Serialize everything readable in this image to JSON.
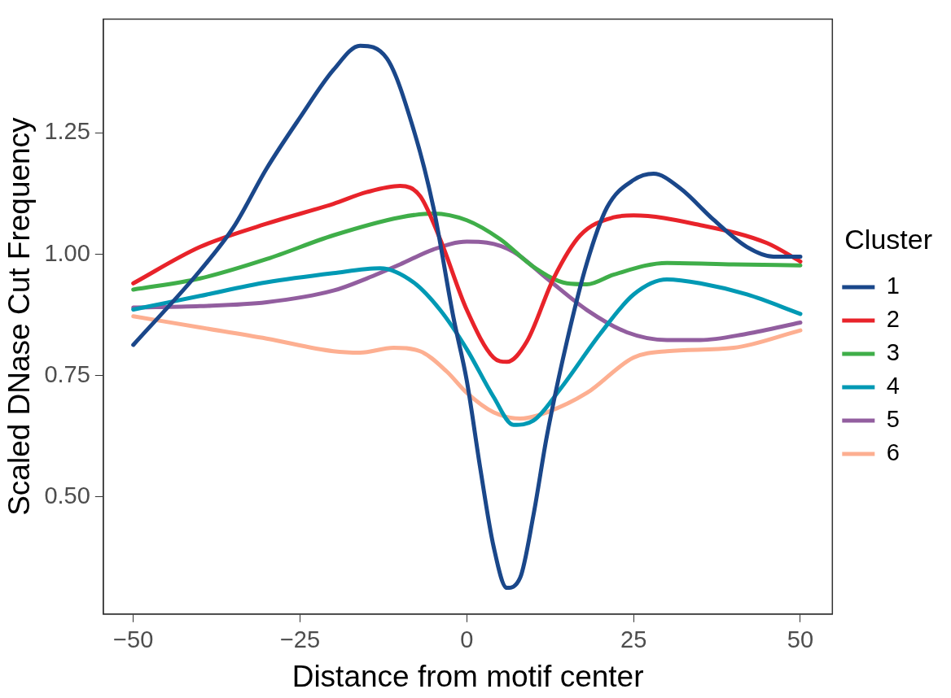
{
  "chart_data": {
    "type": "line",
    "xlabel": "Distance from motif center",
    "ylabel": "Scaled DNase Cut Frequency",
    "legend_title": "Cluster",
    "legend": "right",
    "grid": false,
    "marker": "none",
    "line_style": "solid",
    "xlim": [
      -54.5,
      54.8
    ],
    "ylim": [
      0.258,
      1.485
    ],
    "xticks": [
      {
        "value": -50,
        "label": "−50"
      },
      {
        "value": -25,
        "label": "−25"
      },
      0,
      25,
      50
    ],
    "yticks": [
      {
        "value": 0.5,
        "label": "0.50"
      },
      0.75,
      {
        "value": 1,
        "label": "1.00"
      },
      1.25
    ],
    "series": [
      {
        "name": "1",
        "color": "#1a478a",
        "x": [
          -50,
          -40,
          -35,
          -30,
          -25,
          -20,
          -16,
          -12,
          -8,
          -5,
          -2,
          0,
          2,
          4,
          6,
          8,
          10,
          12,
          15,
          18,
          21,
          25,
          28,
          32,
          37,
          42,
          46,
          50
        ],
        "values": [
          0.813,
          0.966,
          1.055,
          1.177,
          1.282,
          1.38,
          1.43,
          1.404,
          1.258,
          1.096,
          0.869,
          0.739,
          0.56,
          0.398,
          0.312,
          0.333,
          0.463,
          0.625,
          0.82,
          0.982,
          1.096,
          1.153,
          1.166,
          1.136,
          1.071,
          1.015,
          0.995,
          0.995
        ]
      },
      {
        "name": "2",
        "color": "#e8232a",
        "x": [
          -50,
          -40,
          -30,
          -20,
          -15,
          -10,
          -7,
          -4,
          0,
          4,
          6,
          9,
          13,
          17,
          22,
          25,
          35,
          45,
          50
        ],
        "values": [
          0.94,
          1.015,
          1.063,
          1.104,
          1.128,
          1.141,
          1.12,
          1.031,
          0.885,
          0.787,
          0.778,
          0.82,
          0.95,
          1.039,
          1.076,
          1.08,
          1.06,
          1.023,
          0.985
        ]
      },
      {
        "name": "3",
        "color": "#3fae49",
        "x": [
          -50,
          -40,
          -30,
          -20,
          -10,
          -5,
          0,
          5,
          10,
          15,
          18,
          22,
          30,
          40,
          50
        ],
        "values": [
          0.927,
          0.95,
          0.99,
          1.039,
          1.076,
          1.084,
          1.07,
          1.031,
          0.974,
          0.94,
          0.938,
          0.958,
          0.982,
          0.979,
          0.977
        ]
      },
      {
        "name": "4",
        "color": "#0099b4",
        "x": [
          -50,
          -40,
          -30,
          -20,
          -13,
          -8,
          -4,
          0,
          4,
          7,
          10,
          14,
          20,
          25,
          30,
          35,
          42,
          50
        ],
        "values": [
          0.886,
          0.914,
          0.942,
          0.961,
          0.971,
          0.942,
          0.885,
          0.804,
          0.706,
          0.648,
          0.657,
          0.722,
          0.836,
          0.917,
          0.948,
          0.94,
          0.917,
          0.877
        ]
      },
      {
        "name": "5",
        "color": "#925e9f",
        "x": [
          -50,
          -40,
          -30,
          -20,
          -15,
          -10,
          -5,
          0,
          3,
          7,
          12,
          18,
          24,
          30,
          35,
          42,
          50
        ],
        "values": [
          0.89,
          0.893,
          0.901,
          0.925,
          0.95,
          0.979,
          1.01,
          1.026,
          1.024,
          1.005,
          0.95,
          0.885,
          0.839,
          0.823,
          0.823,
          0.836,
          0.859
        ]
      },
      {
        "name": "6",
        "color": "#fdaf91",
        "x": [
          -50,
          -40,
          -30,
          -20,
          -16,
          -11,
          -7,
          -3,
          0,
          4,
          8,
          12,
          18,
          25,
          30,
          40,
          50
        ],
        "values": [
          0.872,
          0.849,
          0.826,
          0.8,
          0.797,
          0.807,
          0.8,
          0.758,
          0.714,
          0.674,
          0.661,
          0.674,
          0.714,
          0.787,
          0.8,
          0.807,
          0.843
        ]
      }
    ]
  }
}
